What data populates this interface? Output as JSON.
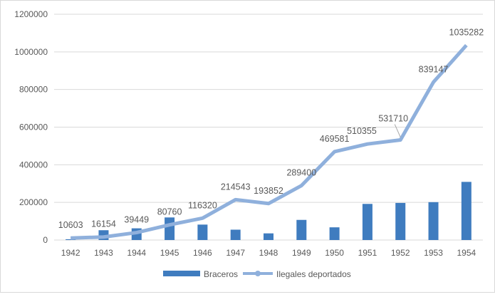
{
  "chart_data": {
    "type": "bar+line",
    "categories": [
      "1942",
      "1943",
      "1944",
      "1945",
      "1946",
      "1947",
      "1948",
      "1949",
      "1950",
      "1951",
      "1952",
      "1953",
      "1954"
    ],
    "series": [
      {
        "name": "Braceros",
        "type": "bar",
        "color": "#3f7cbf",
        "values": [
          4203,
          52098,
          62170,
          120000,
          82000,
          55000,
          35345,
          107000,
          67500,
          192000,
          197100,
          201380,
          309033
        ]
      },
      {
        "name": "Ilegales deportados",
        "type": "line",
        "color": "#8fb0dc",
        "values": [
          10603,
          16154,
          39449,
          80760,
          116320,
          214543,
          193852,
          289400,
          469581,
          510355,
          531710,
          839147,
          1035282
        ],
        "data_labels": [
          "10603",
          "16154",
          "39449",
          "80760",
          "116320",
          "214543",
          "193852",
          "289400",
          "469581",
          "510355",
          "531710",
          "839147",
          "1035282"
        ]
      }
    ],
    "ylim": [
      0,
      1200000
    ],
    "yticks": [
      "0",
      "200000",
      "400000",
      "600000",
      "800000",
      "1000000",
      "1200000"
    ],
    "grid": true,
    "legend": "bottom"
  }
}
